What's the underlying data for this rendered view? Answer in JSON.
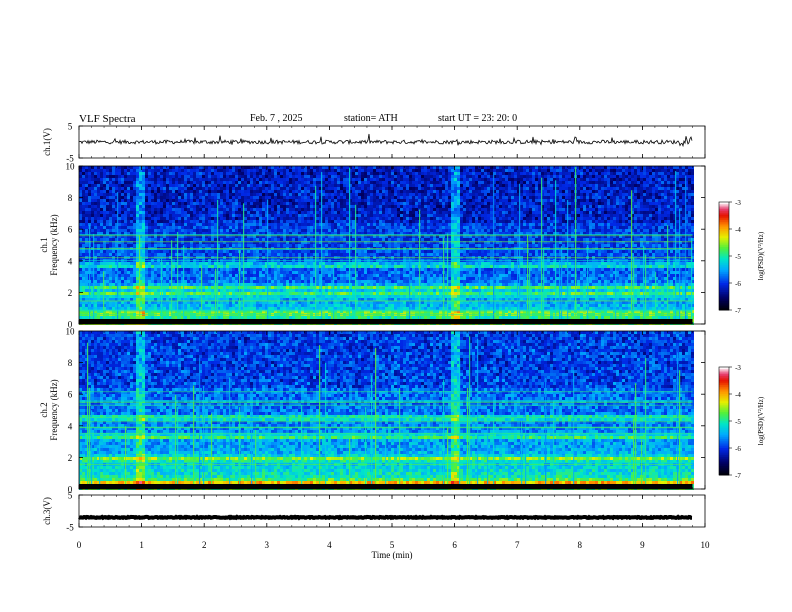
{
  "header": {
    "title": "VLF  Spectra",
    "date": "Feb. 7  , 2025",
    "station": "station= ATH",
    "start": "start  UT  =   23: 20: 0"
  },
  "chart_data": [
    {
      "type": "line",
      "name": "ch1-waveform",
      "ylabel": "ch.1(V)",
      "ylim": [
        -5,
        5
      ],
      "yticks": [
        5,
        -5
      ],
      "x_range": [
        0,
        9.8
      ],
      "baseline": 0
    },
    {
      "type": "heatmap",
      "name": "ch1-spectrogram",
      "ylabel_channel": "ch.1",
      "ylabel": "Frequency  (kHz)",
      "ylim": [
        0,
        10
      ],
      "yticks": [
        0,
        2,
        4,
        6,
        8,
        10
      ],
      "colorbar": {
        "label": "log(PSD)(V²/Hz)",
        "range": [
          -7,
          -3
        ],
        "ticks": [
          -3,
          -4,
          -5,
          -6,
          -7
        ]
      },
      "intense_bands_kHz": [
        0.3,
        0.8,
        2.0,
        2.4,
        3.8
      ],
      "bursts_min": [
        0.95,
        6.0
      ]
    },
    {
      "type": "heatmap",
      "name": "ch2-spectrogram",
      "ylabel_channel": "ch.2",
      "ylabel": "Frequency  (kHz)",
      "ylim": [
        0,
        10
      ],
      "yticks": [
        0,
        2,
        4,
        6,
        8,
        10
      ],
      "colorbar": {
        "label": "log(PSD)(V²/Hz)",
        "range": [
          -7,
          -3
        ],
        "ticks": [
          -3,
          -4,
          -5,
          -6,
          -7
        ]
      },
      "intense_bands_kHz": [
        0.5,
        2.0,
        3.4,
        4.6
      ],
      "bursts_min": [
        0.95,
        6.0
      ]
    },
    {
      "type": "line",
      "name": "ch3-waveform",
      "ylabel": "ch.3(V)",
      "ylim": [
        -5,
        5
      ],
      "yticks": [
        5,
        -5
      ],
      "x_range": [
        0,
        9.8
      ],
      "baseline": -2
    }
  ],
  "xaxis": {
    "label": "Time  (min)",
    "range": [
      0,
      10
    ],
    "ticks": [
      0,
      1,
      2,
      3,
      4,
      5,
      6,
      7,
      8,
      9,
      10
    ]
  }
}
